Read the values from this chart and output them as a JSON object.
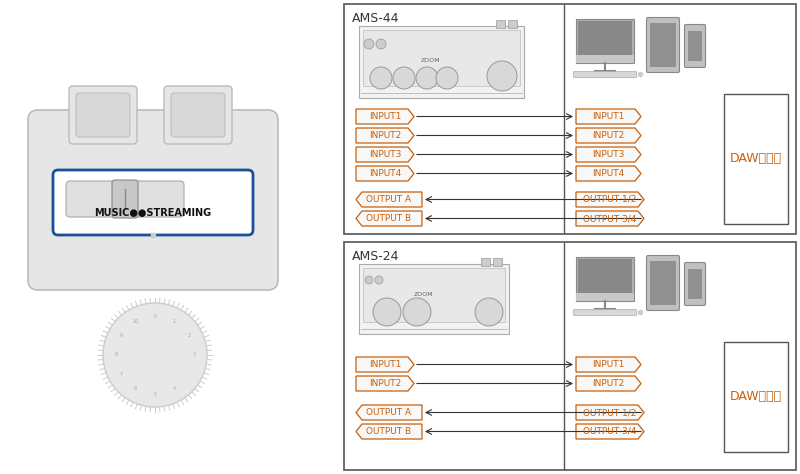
{
  "bg_color": "#ffffff",
  "camera_color": "#e6e6e6",
  "camera_outline": "#bbbbbb",
  "box_outline": "#555555",
  "arrow_color": "#333333",
  "label_color": "#c8600a",
  "daw_label_color": "#c8600a",
  "title_color": "#333333",
  "ams44_title": "AMS-44",
  "ams24_title": "AMS-24",
  "daw_label": "DAWソフト",
  "music_streaming_label": "MUSIC●●STREAMING",
  "ams44_inputs_left": [
    "INPUT1",
    "INPUT2",
    "INPUT3",
    "INPUT4"
  ],
  "ams44_outputs_left": [
    "OUTPUT A",
    "OUTPUT B"
  ],
  "ams44_inputs_right": [
    "INPUT1",
    "INPUT2",
    "INPUT3",
    "INPUT4"
  ],
  "ams44_outputs_right": [
    "OUTPUT 1/2",
    "OUTPUT 3/4"
  ],
  "ams24_inputs_left": [
    "INPUT1",
    "INPUT2"
  ],
  "ams24_outputs_left": [
    "OUTPUT A",
    "OUTPUT B"
  ],
  "ams24_inputs_right": [
    "INPUT1",
    "INPUT2"
  ],
  "ams24_outputs_right": [
    "OUTPUT 1/2",
    "OUTPUT 3/4"
  ],
  "blue_outline": "#1a4f9c"
}
